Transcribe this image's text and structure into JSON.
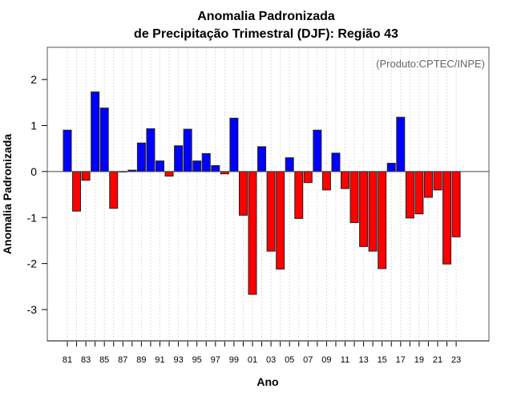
{
  "chart_data": {
    "type": "bar",
    "title": [
      "Anomalia Padronizada",
      "de Precipitação Trimestral (DJF): Região 43"
    ],
    "credit": "(Produto:CPTEC/INPE)",
    "xlabel": "Ano",
    "ylabel": "Anomalia Padronizada",
    "ylim": [
      -3.68,
      2.7
    ],
    "yticks": [
      2,
      1,
      0,
      -1,
      -2,
      -3
    ],
    "grid": "vertical dotted",
    "colors": {
      "positive": "#0000ff",
      "negative": "#ff0000"
    },
    "categories": [
      "81",
      "82",
      "83",
      "84",
      "85",
      "86",
      "87",
      "88",
      "89",
      "90",
      "91",
      "92",
      "93",
      "94",
      "95",
      "96",
      "97",
      "98",
      "99",
      "00",
      "01",
      "02",
      "03",
      "04",
      "05",
      "06",
      "07",
      "08",
      "09",
      "10",
      "11",
      "12",
      "13",
      "14",
      "15",
      "16",
      "17",
      "18",
      "19",
      "20",
      "21",
      "22",
      "23"
    ],
    "xtick_labels": [
      "81",
      "83",
      "85",
      "87",
      "89",
      "91",
      "93",
      "95",
      "97",
      "99",
      "01",
      "03",
      "05",
      "07",
      "09",
      "11",
      "13",
      "15",
      "17",
      "19",
      "21",
      "23"
    ],
    "values": [
      0.9,
      -0.86,
      -0.19,
      1.73,
      1.38,
      -0.8,
      -0.01,
      0.03,
      0.62,
      0.93,
      0.23,
      -0.1,
      0.56,
      0.92,
      0.23,
      0.39,
      0.13,
      -0.05,
      1.16,
      -0.95,
      -2.67,
      0.54,
      -1.73,
      -2.12,
      0.3,
      -1.02,
      -0.24,
      0.9,
      -0.4,
      0.4,
      -0.37,
      -1.11,
      -1.63,
      -1.73,
      -2.11,
      0.18,
      1.18,
      -1.01,
      -0.92,
      -0.56,
      -0.4,
      -2.01,
      -1.42
    ]
  }
}
